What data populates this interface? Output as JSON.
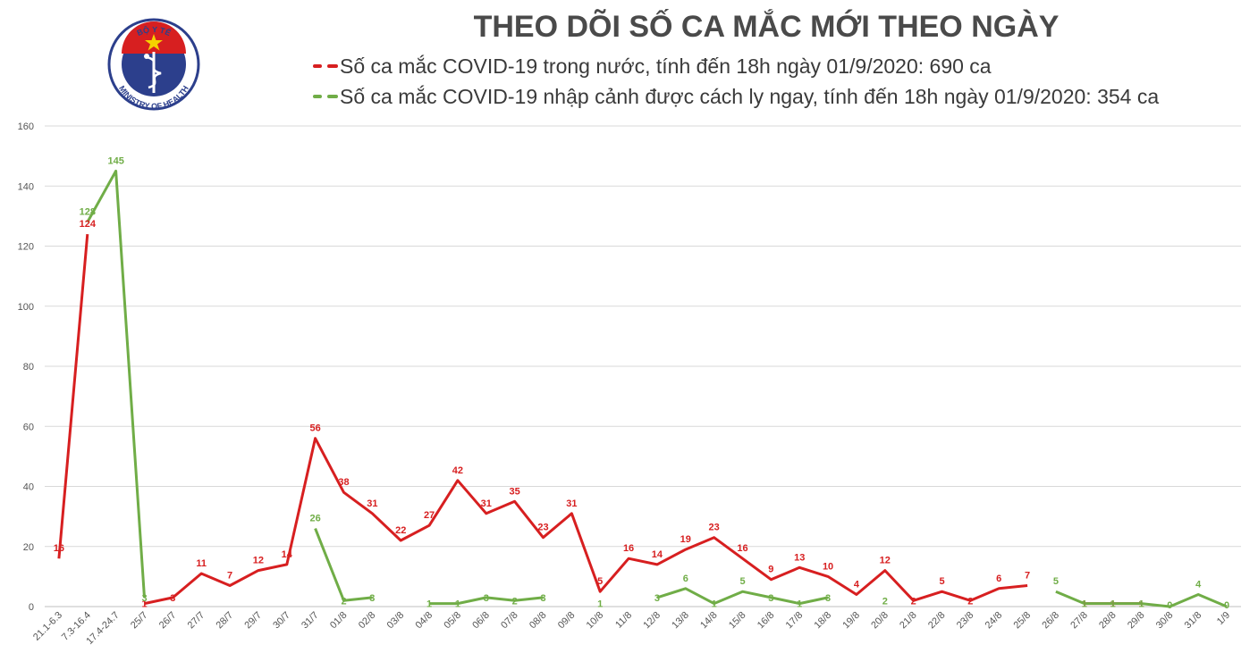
{
  "header": {
    "title": "THEO DÕI SỐ CA MẮC MỚI THEO NGÀY",
    "logo": {
      "top_text": "BỘ Y TẾ",
      "bottom_text": "MINISTRY OF HEALTH",
      "icon": "caduceus-emblem-icon"
    }
  },
  "legend": [
    {
      "marker": "- -",
      "label": "Số ca mắc COVID-19 trong nước, tính đến 18h ngày 01/9/2020: 690 ca",
      "color": "#d71f20"
    },
    {
      "marker": "- -",
      "label": "Số ca mắc COVID-19 nhập cảnh được cách ly ngay, tính đến 18h ngày 01/9/2020: 354 ca",
      "color": "#70ad47"
    }
  ],
  "chart_data": {
    "type": "line",
    "title": "THEO DÕI SỐ CA MẮC MỚI THEO NGÀY",
    "xlabel": "",
    "ylabel": "",
    "ylim": [
      0,
      160
    ],
    "yticks": [
      "0",
      "20",
      "40",
      "60",
      "80",
      "100",
      "120",
      "140",
      "160"
    ],
    "grid": true,
    "legend_position": "top",
    "categories": [
      "21.1-6.3",
      "7.3-16.4",
      "17.4-24.7",
      "25/7",
      "26/7",
      "27/7",
      "28/7",
      "29/7",
      "30/7",
      "31/7",
      "01/8",
      "02/8",
      "03/8",
      "04/8",
      "05/8",
      "06/8",
      "07/8",
      "08/8",
      "09/8",
      "10/8",
      "11/8",
      "12/8",
      "13/8",
      "14/8",
      "15/8",
      "16/8",
      "17/8",
      "18/8",
      "19/8",
      "20/8",
      "21/8",
      "22/8",
      "23/8",
      "24/8",
      "25/8",
      "26/8",
      "27/8",
      "28/8",
      "29/8",
      "30/8",
      "31/8",
      "1/9"
    ],
    "series": [
      {
        "name": "Số ca mắc COVID-19 trong nước, tính đến 18h ngày 01/9/2020: 690 ca",
        "color": "#d71f20",
        "values": [
          16,
          124,
          null,
          1,
          3,
          11,
          7,
          12,
          14,
          56,
          38,
          31,
          22,
          27,
          42,
          31,
          35,
          23,
          31,
          5,
          16,
          14,
          19,
          23,
          16,
          9,
          13,
          10,
          4,
          12,
          2,
          5,
          2,
          6,
          7,
          null,
          1,
          1,
          1,
          null,
          null,
          null
        ]
      },
      {
        "name": "Số ca mắc COVID-19 nhập cảnh được cách ly ngay, tính đến 18h ngày 01/9/2020: 354 ca",
        "color": "#70ad47",
        "values": [
          null,
          128,
          145,
          3,
          null,
          null,
          null,
          null,
          null,
          26,
          2,
          3,
          null,
          1,
          1,
          3,
          2,
          3,
          null,
          1,
          null,
          3,
          6,
          1,
          5,
          3,
          1,
          3,
          null,
          2,
          null,
          null,
          null,
          null,
          null,
          5,
          1,
          1,
          1,
          0,
          4,
          0
        ]
      }
    ]
  }
}
